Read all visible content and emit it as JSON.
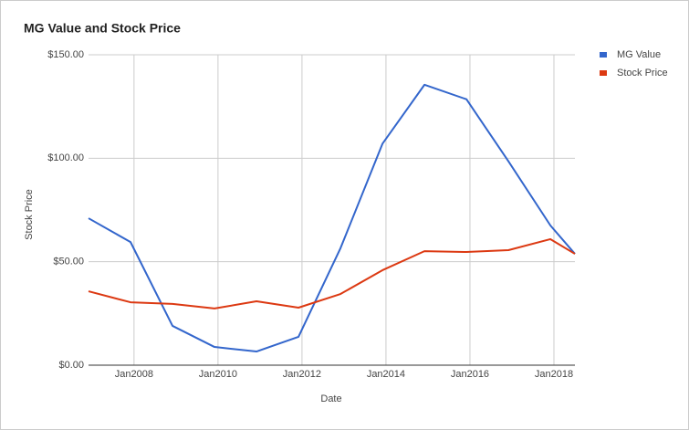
{
  "chart_data": {
    "type": "line",
    "title": "MG Value and Stock Price",
    "x_label": "Date",
    "y_label": "Stock Price",
    "x": [
      "2006-12",
      "2007-12",
      "2008-12",
      "2009-12",
      "2010-12",
      "2011-12",
      "2012-12",
      "2013-12",
      "2014-12",
      "2015-12",
      "2016-12",
      "2017-12",
      "2018-07"
    ],
    "series": [
      {
        "name": "MG Value",
        "color": "#3366cc",
        "values": [
          71,
          59.5,
          19,
          8.8,
          6.6,
          13.7,
          56.5,
          107,
          135.5,
          128.5,
          98.5,
          67.5,
          53.8
        ]
      },
      {
        "name": "Stock Price",
        "color": "#dc3912",
        "values": [
          35.7,
          30.4,
          29.6,
          27.4,
          30.9,
          27.8,
          34.4,
          45.9,
          55.1,
          54.7,
          55.6,
          60.9,
          53.8
        ]
      }
    ],
    "xlim": [
      "2006-12",
      "2018-07"
    ],
    "xticks": [
      {
        "value": "2008-01",
        "label": "Jan2008"
      },
      {
        "value": "2010-01",
        "label": "Jan2010"
      },
      {
        "value": "2012-01",
        "label": "Jan2012"
      },
      {
        "value": "2014-01",
        "label": "Jan2014"
      },
      {
        "value": "2016-01",
        "label": "Jan2016"
      },
      {
        "value": "2018-01",
        "label": "Jan2018"
      }
    ],
    "ylim": [
      0,
      150
    ],
    "yticks": [
      {
        "value": 0,
        "label": "$0.00"
      },
      {
        "value": 50,
        "label": "$50.00"
      },
      {
        "value": 100,
        "label": "$100.00"
      },
      {
        "value": 150,
        "label": "$150.00"
      }
    ],
    "grid": true,
    "legend": "right"
  }
}
